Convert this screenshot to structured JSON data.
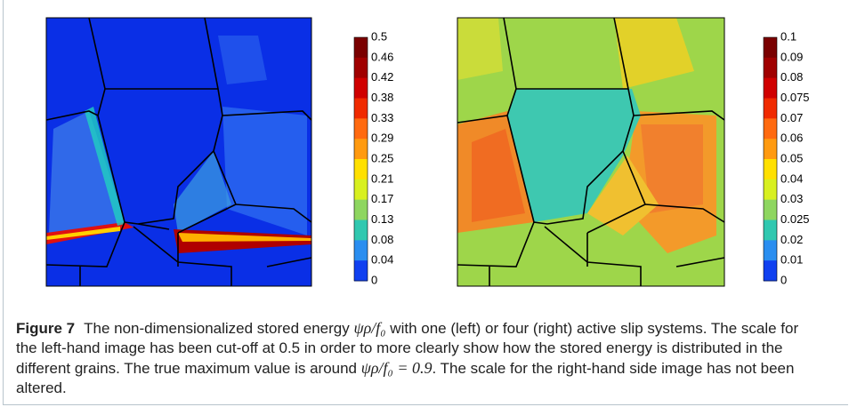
{
  "figure": {
    "colorbars": [
      {
        "labels": [
          "0.5",
          "0.46",
          "0.42",
          "0.38",
          "0.33",
          "0.29",
          "0.25",
          "0.21",
          "0.17",
          "0.13",
          "0.08",
          "0.04",
          "0"
        ]
      },
      {
        "labels": [
          "0.1",
          "0.09",
          "0.08",
          "0.075",
          "0.07",
          "0.06",
          "0.05",
          "0.04",
          "0.03",
          "0.025",
          "0.02",
          "0.01",
          "0"
        ]
      }
    ],
    "caption": {
      "label": "Figure 7",
      "parts": [
        "The non-dimensionalized stored energy ",
        "ψρ/f₀",
        " with one (left) or four (right) active slip systems. The scale for the left-hand image has been cut-off at 0.5 in order to more clearly show how the stored energy is distributed in the different grains. The true maximum value is around ",
        "ψρ/f₀ = 0.9",
        ". The scale for the right-hand side image has not been altered."
      ]
    }
  }
}
